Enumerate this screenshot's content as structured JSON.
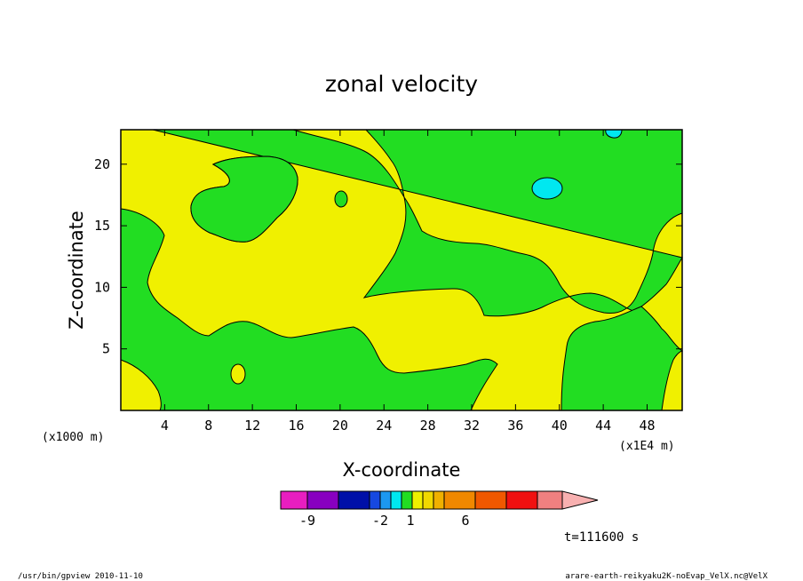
{
  "chart_data": {
    "type": "heatmap",
    "title": "zonal velocity",
    "xlabel": "X-coordinate",
    "ylabel": "Z-coordinate",
    "x_units_left": "(x1000 m)",
    "x_units_right": "(x1E4 m)",
    "xlim": [
      0,
      51.2
    ],
    "ylim": [
      0,
      22.8
    ],
    "x_ticks": [
      "4",
      "8",
      "12",
      "16",
      "20",
      "24",
      "28",
      "32",
      "36",
      "40",
      "44",
      "48"
    ],
    "y_ticks": [
      "5",
      "10",
      "15",
      "20"
    ],
    "regions": [
      {
        "name": "yellow",
        "color": "#f0f000"
      },
      {
        "name": "green",
        "color": "#22dd22"
      },
      {
        "name": "cyan",
        "color": "#00e8f0"
      }
    ],
    "colorbar": {
      "colors": [
        "#e81ec0",
        "#8800c0",
        "#0010a8",
        "#1648e0",
        "#1c98f0",
        "#00e8f0",
        "#22dd22",
        "#f0f000",
        "#f0d800",
        "#f0b000",
        "#f08800",
        "#f05800",
        "#f01010",
        "#f08080",
        "#f8b0b0"
      ],
      "labels": [
        "-9",
        "-2",
        "1",
        "6"
      ]
    },
    "time_label": "t=111600 s"
  },
  "footer": {
    "left": "/usr/bin/gpview   2010-11-10",
    "right": "arare-earth-reikyaku2K-noEvap_VelX.nc@VelX"
  }
}
